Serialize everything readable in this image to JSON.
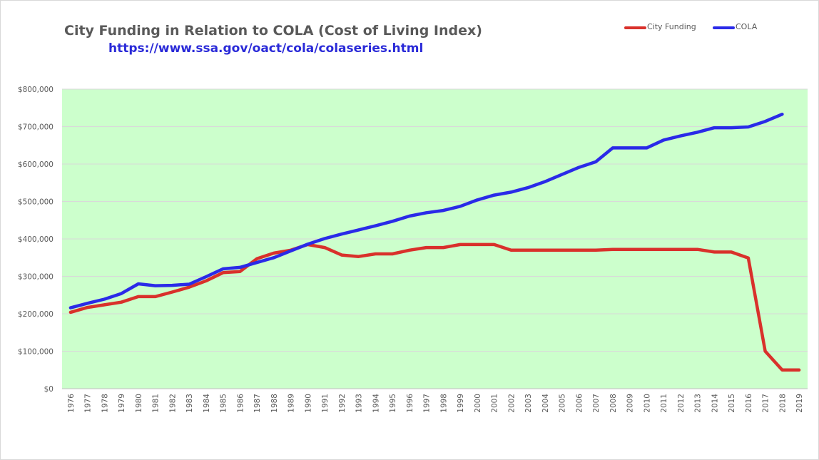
{
  "chart_data": {
    "type": "line",
    "title": "City Funding in Relation to COLA (Cost of Living Index)",
    "subtitle": "https://www.ssa.gov/oact/cola/colaseries.html",
    "xlabel": "",
    "ylabel": "",
    "ylim": [
      0,
      800000
    ],
    "yticks": [
      0,
      100000,
      200000,
      300000,
      400000,
      500000,
      600000,
      700000,
      800000
    ],
    "ytick_labels": [
      "$0",
      "$100,000",
      "$200,000",
      "$300,000",
      "$400,000",
      "$500,000",
      "$600,000",
      "$700,000",
      "$800,000"
    ],
    "grid": true,
    "plot_background": "#ccffcc",
    "legend_position": "top-right",
    "categories": [
      "1976",
      "1977",
      "1978",
      "1979",
      "1980",
      "1981",
      "1982",
      "1983",
      "1984",
      "1985",
      "1986",
      "1987",
      "1988",
      "1989",
      "1990",
      "1991",
      "1992",
      "1993",
      "1994",
      "1995",
      "1996",
      "1997",
      "1998",
      "1999",
      "2000",
      "2001",
      "2002",
      "2003",
      "2004",
      "2005",
      "2006",
      "2007",
      "2008",
      "2009",
      "2010",
      "2011",
      "2012",
      "2013",
      "2014",
      "2015",
      "2016",
      "2017",
      "2018",
      "2019"
    ],
    "series": [
      {
        "name": "City Funding",
        "color": "#d9312b",
        "values": [
          204000,
          217000,
          224000,
          231000,
          246000,
          246000,
          258000,
          271000,
          288000,
          310000,
          313000,
          347000,
          362000,
          370000,
          385000,
          377000,
          357000,
          353000,
          360000,
          360000,
          370000,
          377000,
          377000,
          385000,
          385000,
          385000,
          370000,
          370000,
          370000,
          370000,
          370000,
          370000,
          372000,
          372000,
          372000,
          372000,
          372000,
          372000,
          365000,
          365000,
          349000,
          100000,
          50000,
          50000
        ]
      },
      {
        "name": "COLA",
        "color": "#2a2ae8",
        "values": [
          216000,
          228000,
          239000,
          254000,
          280000,
          275000,
          276000,
          279000,
          299000,
          320000,
          324000,
          337000,
          350000,
          368000,
          386000,
          401000,
          413000,
          424000,
          435000,
          447000,
          461000,
          470000,
          476000,
          487000,
          504000,
          517000,
          525000,
          537000,
          553000,
          572000,
          591000,
          606000,
          643000,
          643000,
          643000,
          664000,
          675000,
          685000,
          697000,
          697000,
          699000,
          714000,
          733000,
          null
        ]
      }
    ]
  }
}
